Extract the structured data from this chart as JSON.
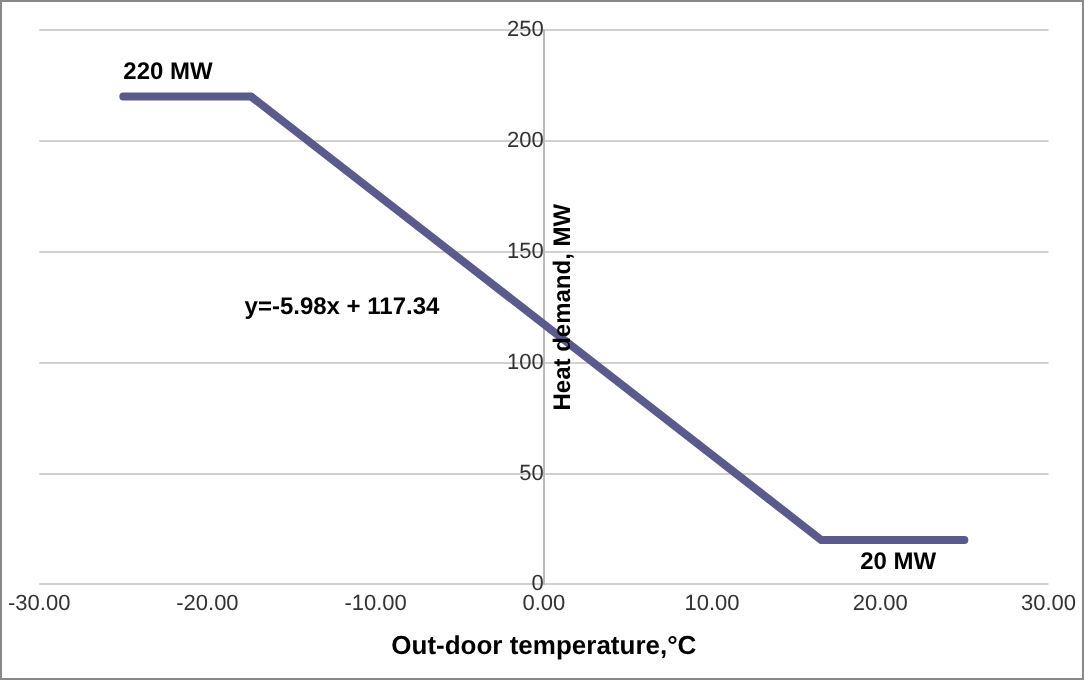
{
  "chart_data": {
    "type": "line",
    "xlabel": "Out-door temperature,°C",
    "ylabel": "Heat demand, MW",
    "x": [
      -25,
      -17.4,
      16.5,
      25
    ],
    "series": [
      {
        "color": "#5a5a8c",
        "values": [
          220,
          220,
          20,
          20
        ]
      }
    ],
    "xlim": [
      -30,
      30
    ],
    "xticks": [
      {
        "value": -30,
        "label": "-30.00"
      },
      {
        "value": -20,
        "label": "-20.00"
      },
      {
        "value": -10,
        "label": "-10.00"
      },
      {
        "value": 0,
        "label": "0.00"
      },
      {
        "value": 10,
        "label": "10.00"
      },
      {
        "value": 20,
        "label": "20.00"
      },
      {
        "value": 30,
        "label": "30.00"
      }
    ],
    "ylim": [
      0,
      250
    ],
    "yticks": [
      0,
      50,
      100,
      150,
      200,
      250
    ],
    "grid": "y",
    "legend": false,
    "marker": "none",
    "line_style": "solid",
    "annotations": [
      {
        "text": "220 MW",
        "x": -25,
        "y": 220
      },
      {
        "text": "20 MW",
        "x": 20,
        "y": 20
      },
      "y=-5.98x + 117.34"
    ]
  }
}
